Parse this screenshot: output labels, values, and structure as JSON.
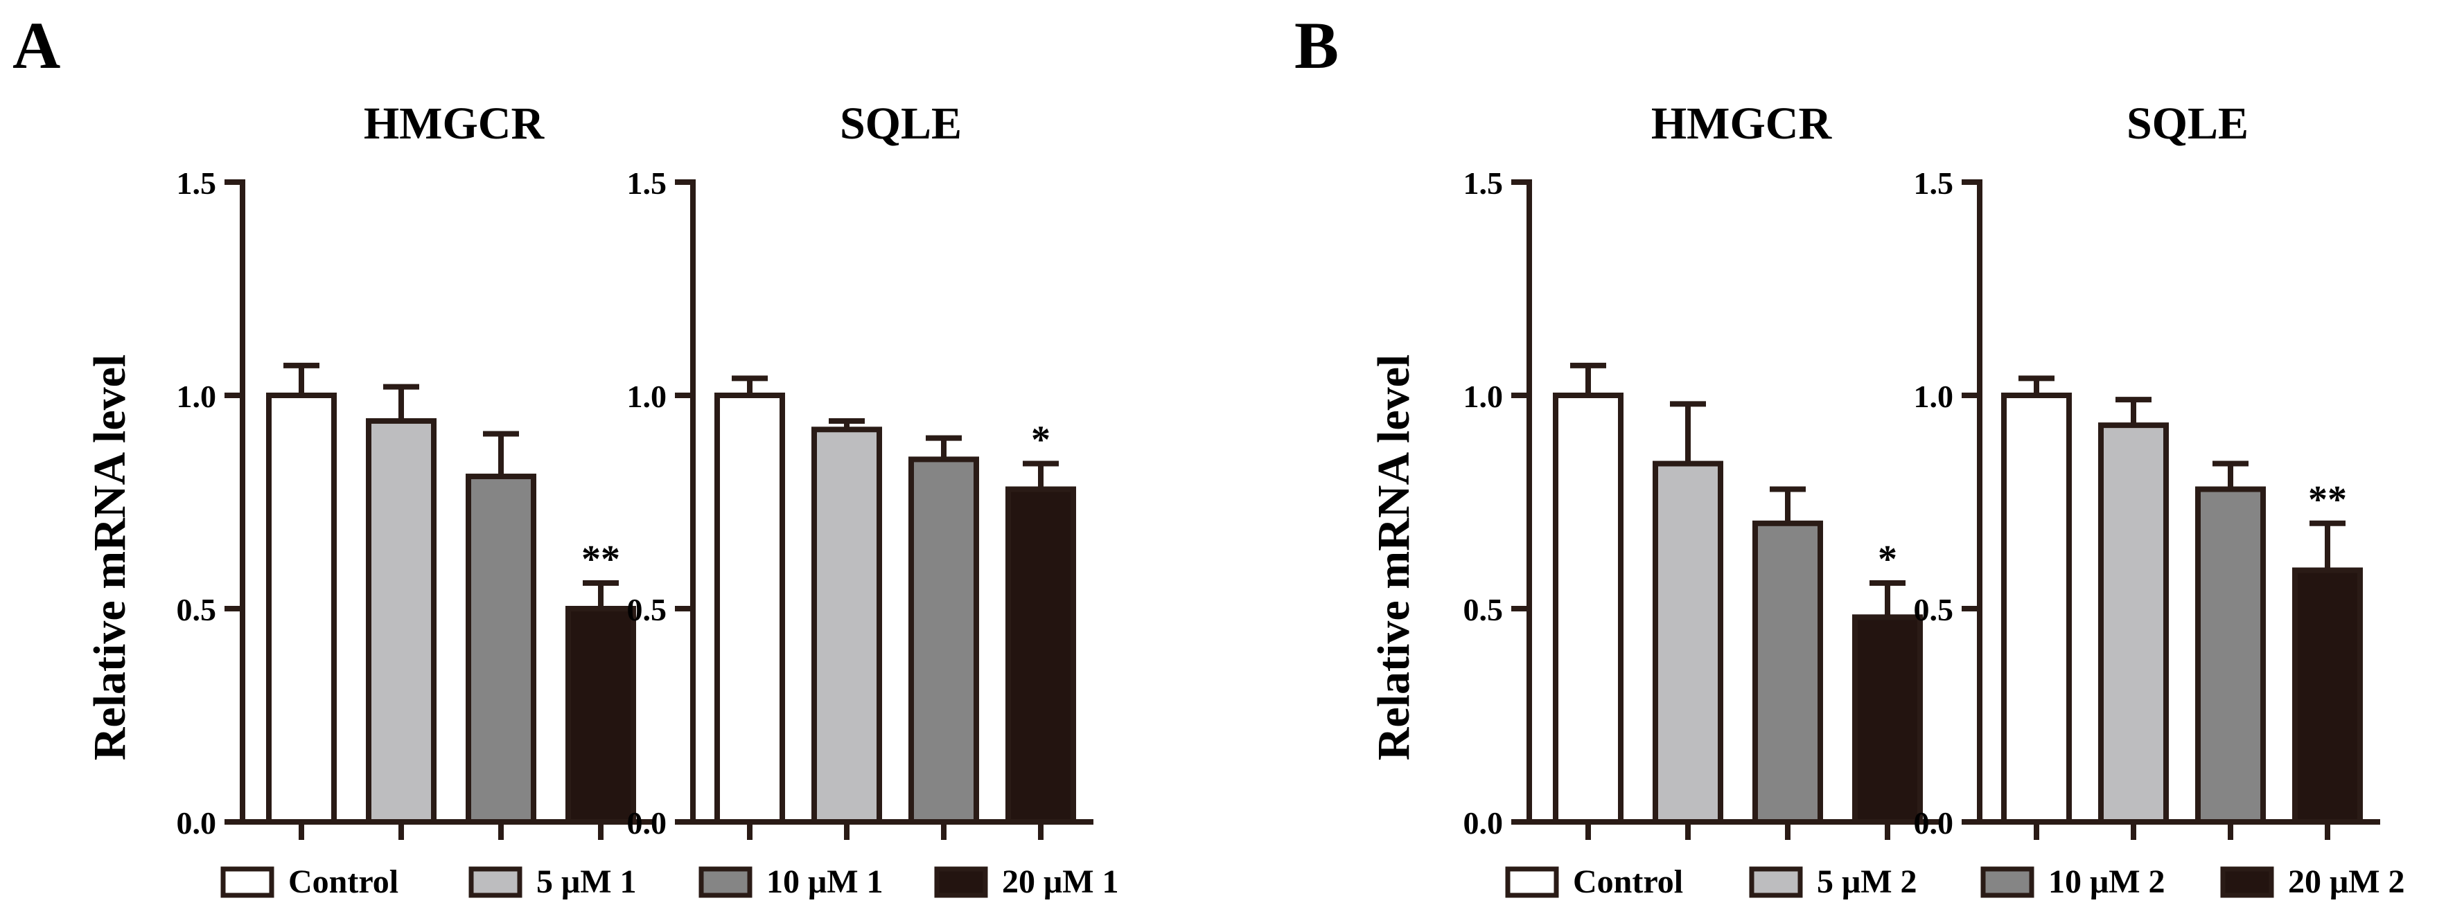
{
  "colors": {
    "axis": "#2a1b16",
    "stroke": "#2a1b16",
    "control": "#ffffff",
    "low": "#bdbdbf",
    "mid": "#858585",
    "high": "#231410"
  },
  "panels": [
    {
      "label": "A",
      "ylabel": "Relative mRNA level",
      "legend": [
        "Control",
        "5 μM 1",
        "10 μM 1",
        "20 μM 1"
      ]
    },
    {
      "label": "B",
      "ylabel": "Relative mRNA level",
      "legend": [
        "Control",
        "5 μM 2",
        "10 μM 2",
        "20 μM 2"
      ]
    }
  ],
  "chart_data": [
    {
      "type": "bar",
      "panel": "A",
      "title": "HMGCR",
      "ylabel": "Relative mRNA level",
      "ylim": [
        0,
        1.5
      ],
      "yticks": [
        "0.0",
        "0.5",
        "1.0",
        "1.5"
      ],
      "categories": [
        "Control",
        "5 μM 1",
        "10 μM 1",
        "20 μM 1"
      ],
      "values": [
        1.0,
        0.94,
        0.81,
        0.5
      ],
      "errors": [
        0.07,
        0.08,
        0.1,
        0.06
      ],
      "significance": [
        "",
        "",
        "",
        "**"
      ]
    },
    {
      "type": "bar",
      "panel": "A",
      "title": "SQLE",
      "ylabel": "",
      "ylim": [
        0,
        1.5
      ],
      "yticks": [
        "0.0",
        "0.5",
        "1.0",
        "1.5"
      ],
      "categories": [
        "Control",
        "5 μM 1",
        "10 μM 1",
        "20 μM 1"
      ],
      "values": [
        1.0,
        0.92,
        0.85,
        0.78
      ],
      "errors": [
        0.04,
        0.02,
        0.05,
        0.06
      ],
      "significance": [
        "",
        "",
        "",
        "*"
      ]
    },
    {
      "type": "bar",
      "panel": "B",
      "title": "HMGCR",
      "ylabel": "Relative mRNA level",
      "ylim": [
        0,
        1.5
      ],
      "yticks": [
        "0.0",
        "0.5",
        "1.0",
        "1.5"
      ],
      "categories": [
        "Control",
        "5 μM 2",
        "10 μM 2",
        "20 μM 2"
      ],
      "values": [
        1.0,
        0.84,
        0.7,
        0.48
      ],
      "errors": [
        0.07,
        0.14,
        0.08,
        0.08
      ],
      "significance": [
        "",
        "",
        "",
        "*"
      ]
    },
    {
      "type": "bar",
      "panel": "B",
      "title": "SQLE",
      "ylabel": "",
      "ylim": [
        0,
        1.5
      ],
      "yticks": [
        "0.0",
        "0.5",
        "1.0",
        "1.5"
      ],
      "categories": [
        "Control",
        "5 μM 2",
        "10 μM 2",
        "20 μM 2"
      ],
      "values": [
        1.0,
        0.93,
        0.78,
        0.59
      ],
      "errors": [
        0.04,
        0.06,
        0.06,
        0.11
      ],
      "significance": [
        "",
        "",
        "",
        "**"
      ]
    }
  ]
}
